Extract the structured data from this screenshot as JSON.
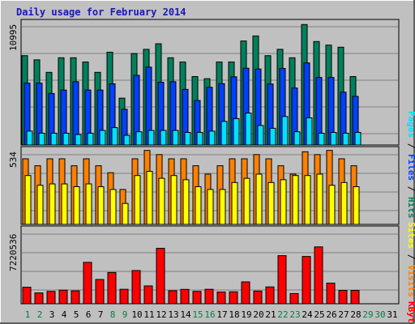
{
  "title": "Daily usage for February 2014",
  "colors": {
    "background": "#c0c0c0",
    "hits": "#00805c",
    "files": "#0040ff",
    "pages": "#00e0ff",
    "visits": "#ff8000",
    "sites": "#ffff00",
    "kbytes": "#ff0000",
    "title": "#1818b8",
    "weekday": "#008040",
    "other_day": "#000000"
  },
  "chart_data": [
    {
      "type": "bar",
      "panel": "hits-files-pages",
      "ymax_label": "10995",
      "ylim": [
        0,
        10995
      ],
      "legend": [
        {
          "label": "Hits",
          "color": "#00805c"
        },
        {
          "label": "Files",
          "color": "#0040ff"
        },
        {
          "label": "Pages",
          "color": "#00e0ff"
        }
      ],
      "categories": [
        "1",
        "2",
        "3",
        "4",
        "5",
        "6",
        "7",
        "8",
        "9",
        "10",
        "11",
        "12",
        "13",
        "14",
        "15",
        "16",
        "17",
        "18",
        "19",
        "20",
        "21",
        "22",
        "23",
        "24",
        "25",
        "26",
        "27",
        "28",
        "29",
        "30",
        "31"
      ],
      "series": [
        {
          "name": "Hits",
          "values": [
            8030,
            7655,
            6530,
            7840,
            7840,
            7460,
            6530,
            8340,
            4210,
            8220,
            8600,
            9100,
            7840,
            7460,
            6150,
            5960,
            7460,
            7460,
            9350,
            9800,
            8030,
            8600,
            7840,
            10830,
            9300,
            8980,
            8790,
            6150,
            null,
            null,
            null
          ]
        },
        {
          "name": "Files",
          "values": [
            5560,
            5560,
            4630,
            4940,
            5690,
            4940,
            4940,
            5500,
            3210,
            6260,
            7000,
            5640,
            5690,
            5000,
            4000,
            5190,
            5520,
            6130,
            6900,
            6830,
            5480,
            6880,
            5120,
            7380,
            6070,
            6070,
            4750,
            4370,
            null,
            null,
            null
          ]
        },
        {
          "name": "Pages",
          "values": [
            1250,
            1060,
            1060,
            1060,
            940,
            1060,
            1310,
            1560,
            870,
            1190,
            1310,
            1310,
            1310,
            1130,
            1130,
            1250,
            2120,
            2370,
            2870,
            1750,
            1500,
            2560,
            1190,
            2440,
            1060,
            1130,
            1060,
            1130,
            null,
            null,
            null
          ]
        }
      ]
    },
    {
      "type": "bar",
      "panel": "visits-sites",
      "ymax_label": "534",
      "ylim": [
        0,
        534
      ],
      "legend": [
        {
          "label": "Visits",
          "color": "#ff8000"
        },
        {
          "label": "Sites",
          "color": "#ffff00"
        }
      ],
      "categories": [
        "1",
        "2",
        "3",
        "4",
        "5",
        "6",
        "7",
        "8",
        "9",
        "10",
        "11",
        "12",
        "13",
        "14",
        "15",
        "16",
        "17",
        "18",
        "19",
        "20",
        "21",
        "22",
        "23",
        "24",
        "25",
        "26",
        "27",
        "28",
        "29",
        "30",
        "31"
      ],
      "series": [
        {
          "name": "Visits",
          "values": [
            470,
            420,
            470,
            470,
            420,
            470,
            420,
            370,
            250,
            470,
            530,
            500,
            470,
            470,
            420,
            360,
            420,
            470,
            470,
            500,
            470,
            420,
            360,
            520,
            500,
            530,
            470,
            420,
            null,
            null,
            null
          ]
        },
        {
          "name": "Sites",
          "values": [
            350,
            280,
            290,
            290,
            270,
            290,
            270,
            250,
            150,
            350,
            380,
            330,
            350,
            320,
            270,
            250,
            250,
            300,
            330,
            360,
            300,
            320,
            350,
            350,
            360,
            280,
            300,
            270,
            null,
            null,
            null
          ]
        }
      ]
    },
    {
      "type": "bar",
      "panel": "kbytes",
      "ymax_label": "7220536",
      "ylim": [
        0,
        7220536
      ],
      "legend": [
        {
          "label": "KBytes",
          "color": "#ff0000"
        }
      ],
      "categories": [
        "1",
        "2",
        "3",
        "4",
        "5",
        "6",
        "7",
        "8",
        "9",
        "10",
        "11",
        "12",
        "13",
        "14",
        "15",
        "16",
        "17",
        "18",
        "19",
        "20",
        "21",
        "22",
        "23",
        "24",
        "25",
        "26",
        "27",
        "28",
        "29",
        "30",
        "31"
      ],
      "series": [
        {
          "name": "KBytes",
          "values": [
            1600000,
            1050000,
            1200000,
            1320000,
            1250000,
            4010000,
            2350000,
            3030000,
            1400000,
            3220000,
            1730000,
            5370000,
            1260000,
            1390000,
            1200000,
            1400000,
            1140000,
            1160000,
            2120000,
            1230000,
            1630000,
            4660000,
            990000,
            4580000,
            5510000,
            2000000,
            1290000,
            1290000,
            null,
            null,
            null
          ]
        }
      ]
    }
  ],
  "weekend_days": [
    "1",
    "2",
    "8",
    "9",
    "15",
    "16",
    "22",
    "23",
    "29",
    "30"
  ]
}
